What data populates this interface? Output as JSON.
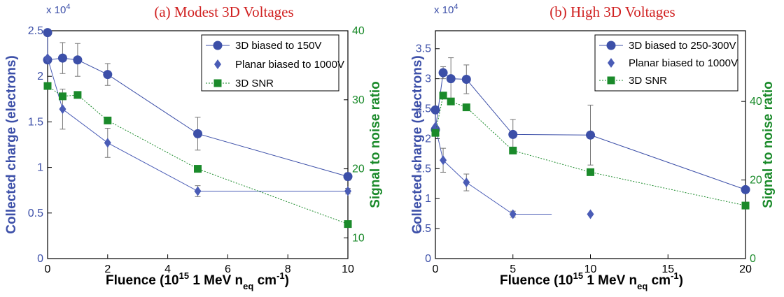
{
  "colors": {
    "charge": "#3c4fa8",
    "planar": "#4a5cb6",
    "snr": "#1a8a2a",
    "title": "#d02020",
    "frame": "#000000"
  },
  "chart_data": [
    {
      "type": "scatter",
      "title": "(a) Modest 3D Voltages",
      "xlabel": "Fluence (10",
      "xlabel_sup": "15",
      "xlabel_mid": " 1 MeV n",
      "xlabel_sub": "eq",
      "xlabel_end": " cm",
      "xlabel_sup2": "-1",
      "xlabel_close": ")",
      "ylabel": "Collected charge (electrons)",
      "y2label": "Signal to noise ratio",
      "y_multiplier": "x 10",
      "y_multiplier_exp": "4",
      "xlim": [
        0,
        10
      ],
      "ylim": [
        0,
        2.5
      ],
      "y2lim": [
        7,
        40
      ],
      "xticks": [
        "0",
        "2",
        "4",
        "6",
        "8",
        "10"
      ],
      "xtick_values": [
        0,
        2,
        4,
        6,
        8,
        10
      ],
      "yticks": [
        "0",
        "0.5",
        "1",
        "1.5",
        "2",
        "2.5"
      ],
      "ytick_values": [
        0,
        0.5,
        1,
        1.5,
        2,
        2.5
      ],
      "y2ticks": [
        "10",
        "20",
        "30",
        "40"
      ],
      "y2tick_values": [
        10,
        20,
        30,
        40
      ],
      "legend_position": "top-right",
      "series": [
        {
          "name": "3D biased to 150V",
          "axis": "left",
          "marker": "circle",
          "line": "solid",
          "x": [
            0,
            0,
            0.5,
            1,
            2,
            5,
            10
          ],
          "y": [
            2.48,
            2.18,
            2.2,
            2.18,
            2.02,
            1.37,
            0.9
          ],
          "err": [
            0,
            0,
            0.17,
            0.18,
            0.12,
            0.18,
            0.04
          ]
        },
        {
          "name": "Planar biased to 1000V",
          "axis": "left",
          "marker": "diamond",
          "line": "solid",
          "x": [
            0,
            0.5,
            2,
            5,
            10
          ],
          "y": [
            2.2,
            1.64,
            1.27,
            0.74,
            0.74
          ],
          "err": [
            0,
            0.22,
            0.16,
            0.06,
            0.03
          ]
        },
        {
          "name": "3D SNR",
          "axis": "right",
          "marker": "square",
          "line": "dotted",
          "x": [
            0,
            0.5,
            1,
            2,
            5,
            10
          ],
          "y": [
            32,
            30.5,
            30.7,
            27,
            20,
            12
          ],
          "err": [
            0,
            0,
            0,
            0,
            0,
            0
          ]
        }
      ]
    },
    {
      "type": "scatter",
      "title": "(b) High 3D Voltages",
      "xlabel": "Fluence (10",
      "xlabel_sup": "15",
      "xlabel_mid": " 1 MeV n",
      "xlabel_sub": "eq",
      "xlabel_end": " cm",
      "xlabel_sup2": "-1",
      "xlabel_close": ")",
      "ylabel": "Collected charge (electrons)",
      "y2label": "Signal to noise ratio",
      "y_multiplier": "x 10",
      "y_multiplier_exp": "4",
      "xlim": [
        0,
        20
      ],
      "ylim": [
        0,
        3.8
      ],
      "y2lim": [
        0,
        58
      ],
      "xticks": [
        "0",
        "5",
        "10",
        "15",
        "20"
      ],
      "xtick_values": [
        0,
        5,
        10,
        15,
        20
      ],
      "yticks": [
        "0",
        "0.5",
        "1",
        "1.5",
        "2",
        "2.5",
        "3",
        "3.5"
      ],
      "ytick_values": [
        0,
        0.5,
        1,
        1.5,
        2,
        2.5,
        3,
        3.5
      ],
      "y2ticks": [
        "0",
        "20",
        "40"
      ],
      "y2tick_values": [
        0,
        20,
        40
      ],
      "legend_position": "top-right",
      "series": [
        {
          "name": "3D biased to 250-300V",
          "axis": "left",
          "marker": "circle",
          "line": "solid",
          "x": [
            0,
            0,
            0.5,
            1,
            2,
            5,
            10,
            20
          ],
          "y": [
            2.48,
            2.15,
            3.1,
            3.0,
            2.99,
            2.07,
            2.06,
            1.15
          ],
          "err": [
            0,
            0,
            0.1,
            0.35,
            0.24,
            0.25,
            0.5,
            0.05
          ]
        },
        {
          "name": "Planar biased to 1000V",
          "axis": "left",
          "marker": "diamond",
          "line": "solid",
          "x": [
            0,
            0.5,
            2,
            5,
            7.5
          ],
          "y": [
            2.2,
            1.64,
            1.27,
            0.74,
            0.74
          ],
          "err": [
            0,
            0.2,
            0.14,
            0.05,
            0
          ],
          "extra_x": [
            10
          ],
          "extra_y": [
            0.74
          ]
        },
        {
          "name": "3D SNR",
          "axis": "right",
          "marker": "square",
          "line": "dotted",
          "x": [
            0,
            0.5,
            1,
            2,
            5,
            10,
            20
          ],
          "y": [
            32,
            41.5,
            40,
            38.5,
            27.5,
            22,
            13.5
          ],
          "err": [
            0,
            0,
            0,
            0,
            0,
            0,
            0
          ]
        }
      ]
    }
  ]
}
